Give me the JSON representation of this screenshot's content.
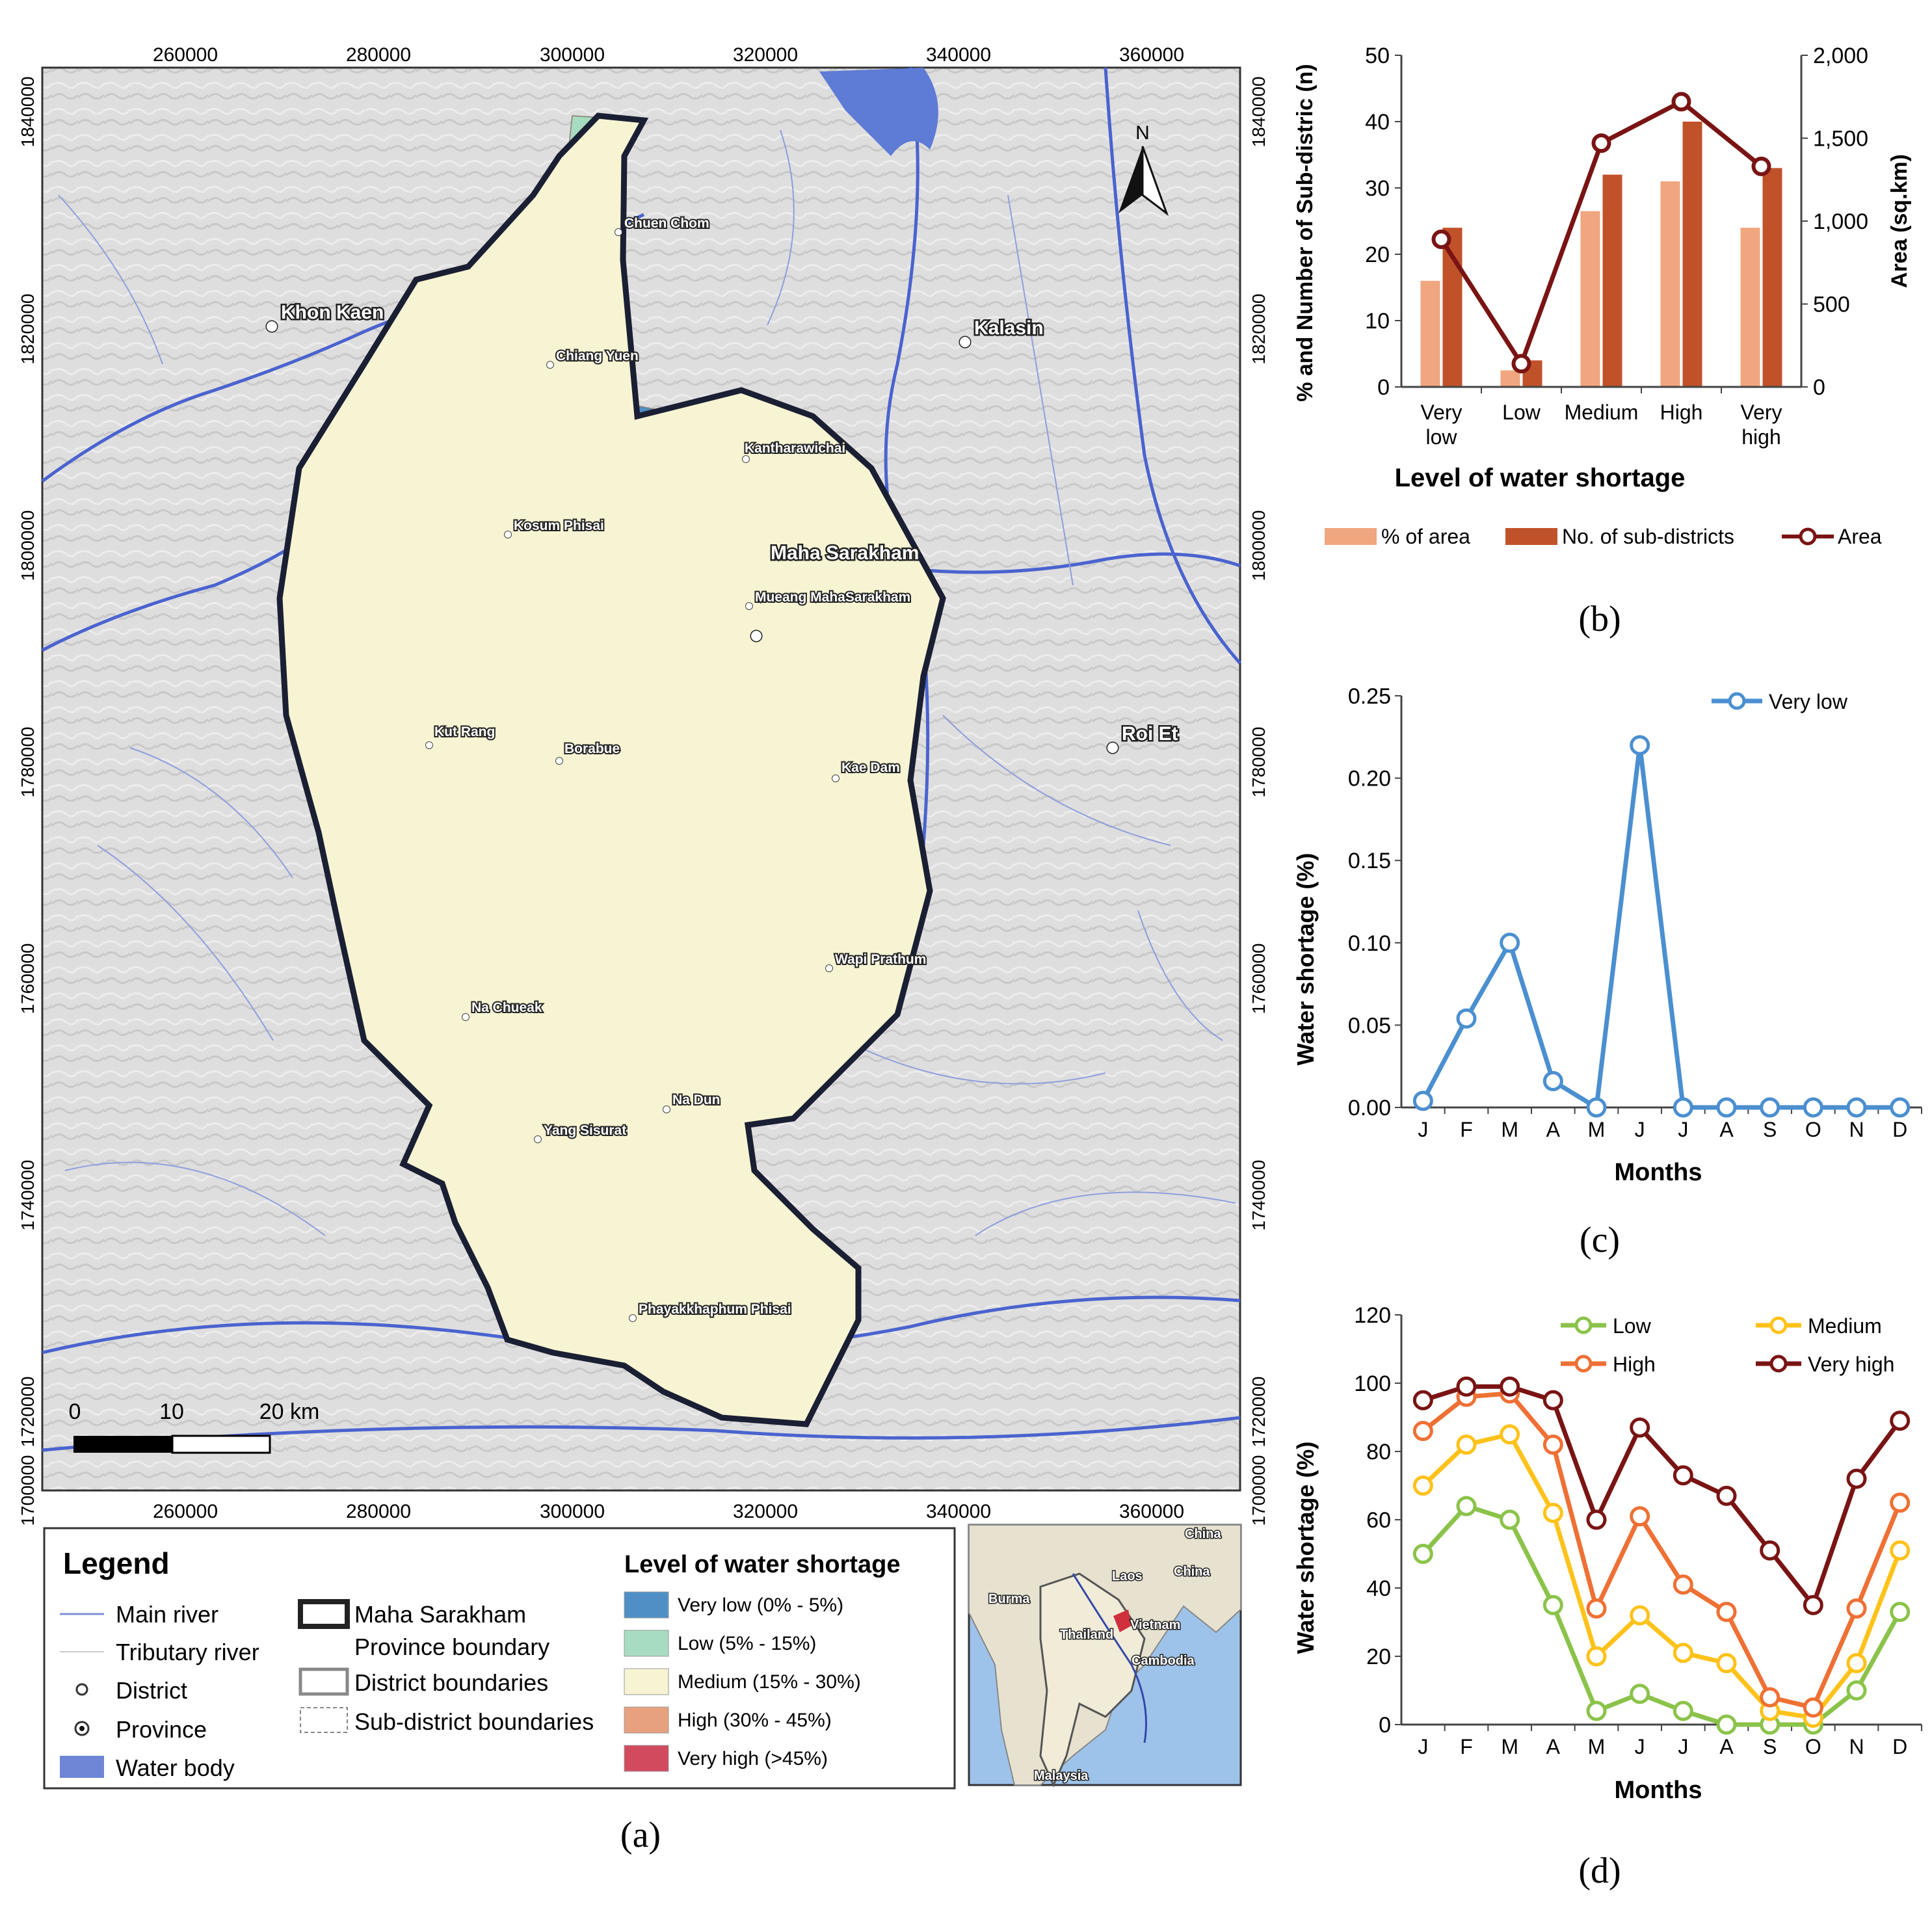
{
  "map": {
    "x_ticks": [
      "260000",
      "280000",
      "300000",
      "320000",
      "340000",
      "360000"
    ],
    "y_ticks": [
      "1840000",
      "1820000",
      "1800000",
      "1780000",
      "1760000",
      "1740000",
      "1720000",
      "1700000"
    ],
    "province_label": "Maha Sarakham",
    "cities": [
      "Khon Kaen",
      "Kalasin",
      "Roi Et"
    ],
    "districts": [
      "Chuen Chom",
      "Chiang Yuen",
      "Kantharawichai",
      "Kosum Phisai",
      "Mueang MahaSarakham",
      "Kut Rang",
      "Borabue",
      "Kae Dam",
      "Wapi Prathum",
      "Na Chueak",
      "Na Dun",
      "Yang Sisurat",
      "Phayakkhaphum Phisai"
    ],
    "north_label": "N",
    "scale_labels": [
      "0",
      "10",
      "20 km"
    ],
    "colors": {
      "very_low": "#4f8fc6",
      "low": "#a8dcc0",
      "medium": "#f7f4d3",
      "high": "#e8a17e",
      "very_high": "#d24a5e",
      "water": "#6f86d6",
      "river": "#3b57c8"
    }
  },
  "legend": {
    "title": "Legend",
    "items": [
      "Main river",
      "Tributary river",
      "District",
      "Province",
      "Water body"
    ],
    "boundary_items": [
      "Maha Sarakham",
      "Province boundary",
      "District boundaries",
      "Sub-district boundaries"
    ],
    "levels_title": "Level of water shortage",
    "levels": [
      "Very low (0% - 5%)",
      "Low (5% - 15%)",
      "Medium (15% - 30%)",
      "High (30% - 45%)",
      "Very high (>45%)"
    ]
  },
  "inset": {
    "labels": [
      "China",
      "Burma",
      "Laos",
      "China",
      "Thailand",
      "Vietnam",
      "Cambodia",
      "Malaysia"
    ]
  },
  "captions": {
    "a": "(a)",
    "b": "(b)",
    "c": "(c)",
    "d": "(d)"
  },
  "chart_data": [
    {
      "id": "b",
      "type": "bar",
      "categories": [
        [
          "Very",
          "low"
        ],
        [
          "Low"
        ],
        [
          "Medium"
        ],
        [
          "High"
        ],
        [
          "Very",
          "high"
        ]
      ],
      "series": [
        {
          "name": "% of area",
          "axis": "left",
          "values": [
            16,
            2.5,
            26.5,
            31,
            24
          ],
          "color": "#f0a67e"
        },
        {
          "name": "No. of sub-districts",
          "axis": "left",
          "values": [
            24,
            4,
            32,
            40,
            33
          ],
          "color": "#c0522a"
        },
        {
          "name": "Area",
          "axis": "right",
          "type": "line",
          "values": [
            890,
            140,
            1470,
            1720,
            1330
          ],
          "color": "#7a1414"
        }
      ],
      "ylabel": "% and Number of Sub-distric (n)",
      "ylabel2": "Area (sq.km)",
      "xlabel": "Level of water shortage",
      "ylim": [
        0,
        50
      ],
      "yticks": [
        "0",
        "10",
        "20",
        "30",
        "40",
        "50"
      ],
      "ytick_values": [
        0,
        10,
        20,
        30,
        40,
        50
      ],
      "ylim2": [
        0,
        2000
      ],
      "yticks2": [
        "0",
        "500",
        "1,000",
        "1,500",
        "2,000"
      ],
      "ytick2_values": [
        0,
        500,
        1000,
        1500,
        2000
      ]
    },
    {
      "id": "c",
      "type": "line",
      "categories": [
        "J",
        "F",
        "M",
        "A",
        "M",
        "J",
        "J",
        "A",
        "S",
        "O",
        "N",
        "D"
      ],
      "series": [
        {
          "name": "Very low",
          "values": [
            0.004,
            0.054,
            0.1,
            0.016,
            0,
            0.22,
            0,
            0,
            0,
            0,
            0,
            0
          ],
          "color": "#4a8fd0"
        }
      ],
      "ylabel": "Water shortage (%)",
      "xlabel": "Months",
      "ylim": [
        0,
        0.25
      ],
      "yticks": [
        "0.00",
        "0.05",
        "0.10",
        "0.15",
        "0.20",
        "0.25"
      ],
      "ytick_values": [
        0,
        0.05,
        0.1,
        0.15,
        0.2,
        0.25
      ]
    },
    {
      "id": "d",
      "type": "line",
      "categories": [
        "J",
        "F",
        "M",
        "A",
        "M",
        "J",
        "J",
        "A",
        "S",
        "O",
        "N",
        "D"
      ],
      "series": [
        {
          "name": "Low",
          "values": [
            50,
            64,
            60,
            35,
            4,
            9,
            4,
            0,
            0,
            0,
            10,
            33
          ],
          "color": "#8bc34a"
        },
        {
          "name": "Medium",
          "values": [
            70,
            82,
            85,
            62,
            20,
            32,
            21,
            18,
            4,
            2,
            18,
            51
          ],
          "color": "#ffc21a"
        },
        {
          "name": "High",
          "values": [
            86,
            96,
            97,
            82,
            34,
            61,
            41,
            33,
            8,
            5,
            34,
            65
          ],
          "color": "#ee7034"
        },
        {
          "name": "Very high",
          "values": [
            95,
            99,
            99,
            95,
            60,
            87,
            73,
            67,
            51,
            35,
            72,
            89
          ],
          "color": "#7a1414"
        }
      ],
      "ylabel": "Water shortage (%)",
      "xlabel": "Months",
      "ylim": [
        0,
        120
      ],
      "yticks": [
        "0",
        "20",
        "40",
        "60",
        "80",
        "100",
        "120"
      ],
      "ytick_values": [
        0,
        20,
        40,
        60,
        80,
        100,
        120
      ]
    }
  ]
}
